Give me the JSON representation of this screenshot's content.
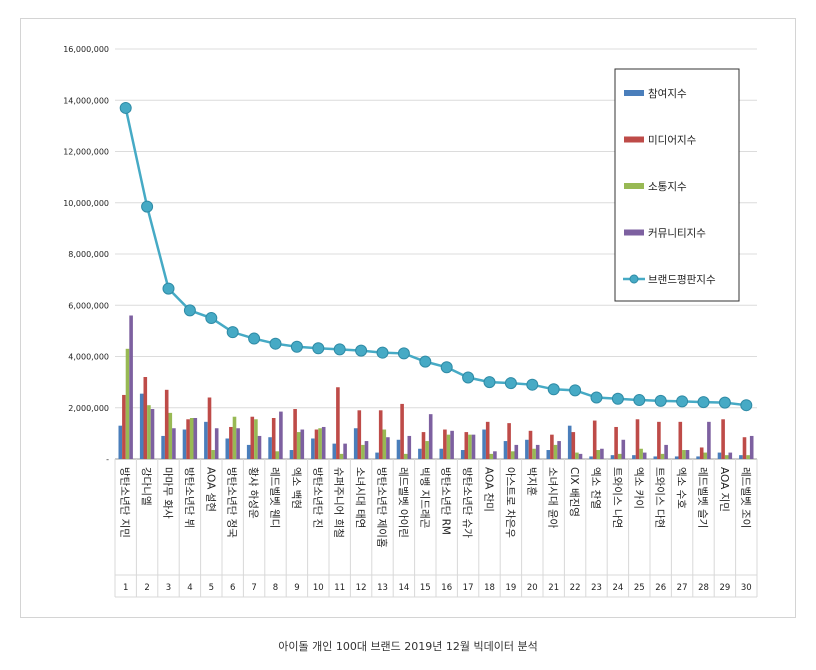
{
  "caption": "아이돌 개인 100대 브랜드 2019년 12월 빅데이터 분석",
  "chart_data": {
    "type": "bar",
    "title": "",
    "xlabel": "",
    "ylabel": "",
    "ylim": [
      0,
      16000000
    ],
    "yticks": [
      "-",
      "2,000,000",
      "4,000,000",
      "6,000,000",
      "8,000,000",
      "10,000,000",
      "12,000,000",
      "14,000,000",
      "16,000,000"
    ],
    "grid": true,
    "legend_position": "top-right",
    "categories": [
      "방탄소년단 지민",
      "강다니엘",
      "마마무 화사",
      "방탄소년단 뷔",
      "AOA 설현",
      "방탄소년단 정국",
      "황샤 하성운",
      "레드벨벳 웬디",
      "엑소 백현",
      "방탄소년단 진",
      "슈퍼주니어 희철",
      "소녀시대 태연",
      "방탄소년단 제이홉",
      "레드벨벳 아이린",
      "빅뱅 지드래곤",
      "방탄소년단 RM",
      "방탄소년단 슈가",
      "AOA 찬미",
      "아스트로 차은우",
      "박지훈",
      "소녀시대 윤아",
      "CIX 배진영",
      "엑소 찬열",
      "트와이스 나연",
      "엑소 카이",
      "트와이스 다현",
      "엑소 수호",
      "레드벨벳 슬기",
      "AOA 지민",
      "레드벨벳 조이"
    ],
    "ranks": [
      "1",
      "2",
      "3",
      "4",
      "5",
      "6",
      "7",
      "8",
      "9",
      "10",
      "11",
      "12",
      "13",
      "14",
      "15",
      "16",
      "17",
      "18",
      "19",
      "20",
      "21",
      "22",
      "23",
      "24",
      "25",
      "26",
      "27",
      "28",
      "29",
      "30"
    ],
    "series": [
      {
        "name": "참여지수",
        "color": "#4a7ebb",
        "kind": "bar",
        "values": [
          1300000,
          2550000,
          900000,
          1150000,
          1450000,
          800000,
          550000,
          850000,
          350000,
          800000,
          600000,
          1200000,
          250000,
          750000,
          400000,
          400000,
          350000,
          1150000,
          700000,
          750000,
          350000,
          1300000,
          100000,
          150000,
          150000,
          100000,
          100000,
          100000,
          250000,
          150000
        ]
      },
      {
        "name": "미디어지수",
        "color": "#be4b48",
        "kind": "bar",
        "values": [
          2500000,
          3200000,
          2700000,
          1550000,
          2400000,
          1250000,
          1650000,
          1600000,
          1950000,
          1150000,
          2800000,
          1900000,
          1900000,
          2150000,
          1050000,
          1150000,
          1050000,
          1450000,
          1400000,
          1100000,
          950000,
          1050000,
          1500000,
          1250000,
          1550000,
          1450000,
          1450000,
          450000,
          1550000,
          850000
        ]
      },
      {
        "name": "소통지수",
        "color": "#98b954",
        "kind": "bar",
        "values": [
          4300000,
          2100000,
          1800000,
          1600000,
          350000,
          1650000,
          1550000,
          300000,
          1050000,
          1200000,
          200000,
          550000,
          1150000,
          200000,
          700000,
          950000,
          950000,
          200000,
          300000,
          400000,
          550000,
          250000,
          350000,
          200000,
          400000,
          200000,
          350000,
          250000,
          150000,
          150000
        ]
      },
      {
        "name": "커뮤니티지수",
        "color": "#7d60a0",
        "kind": "bar",
        "values": [
          5600000,
          1950000,
          1200000,
          1600000,
          1200000,
          1200000,
          900000,
          1850000,
          1150000,
          1250000,
          600000,
          700000,
          850000,
          900000,
          1750000,
          1100000,
          950000,
          300000,
          550000,
          550000,
          700000,
          200000,
          400000,
          750000,
          250000,
          550000,
          350000,
          1450000,
          250000,
          900000
        ]
      },
      {
        "name": "브랜드평판지수",
        "color": "#46aac5",
        "kind": "line",
        "values": [
          13700000,
          9850000,
          6650000,
          5800000,
          5500000,
          4950000,
          4700000,
          4500000,
          4380000,
          4320000,
          4280000,
          4230000,
          4150000,
          4120000,
          3800000,
          3580000,
          3180000,
          3000000,
          2960000,
          2900000,
          2720000,
          2680000,
          2400000,
          2350000,
          2300000,
          2270000,
          2250000,
          2220000,
          2200000,
          2100000
        ]
      }
    ]
  }
}
